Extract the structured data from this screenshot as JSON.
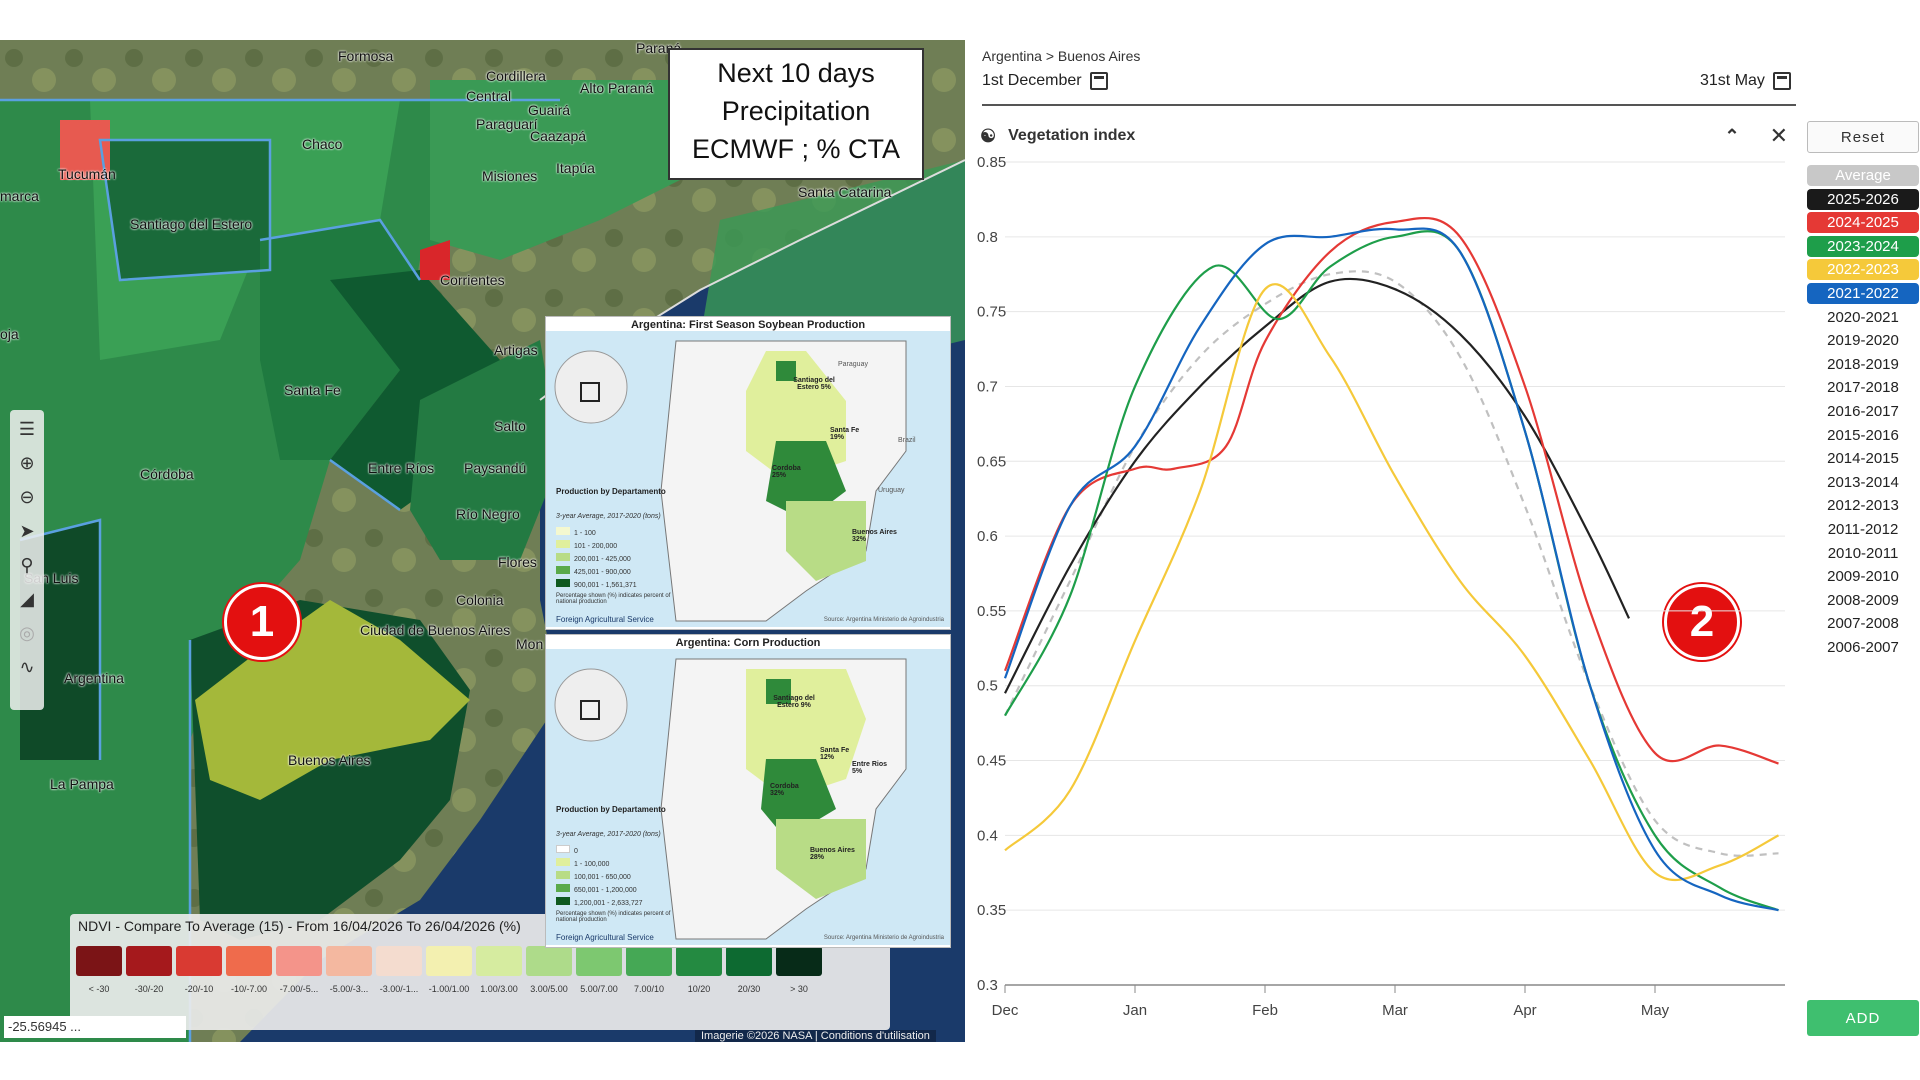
{
  "map": {
    "labels": [
      "Formosa",
      "Cordillera",
      "Paraguarí",
      "Guairá",
      "Alto Paraná",
      "Central",
      "Caazapá",
      "Itapúa",
      "Misiones",
      "Chaco",
      "Tucumán",
      "Santiago del Estero",
      "Corrientes",
      "Santa Catarina",
      "Santa Fe",
      "Artigas",
      "Córdoba",
      "Entre Ríos",
      "Paysandú",
      "Salto",
      "Río Negro",
      "Flores",
      "Colonia",
      "San Luis",
      "Ciudad de Buenos Aires",
      "Argentina",
      "La Pampa",
      "Buenos Aires",
      "Paraná",
      "marca",
      "oja",
      "Mon"
    ],
    "toolbar": [
      "layers-icon",
      "zoom-in-icon",
      "zoom-out-icon",
      "navigate-icon",
      "search-icon",
      "measure-icon",
      "locate-icon",
      "draw-icon"
    ],
    "legend": {
      "title": "NDVI - Compare To Average (15) - From 16/04/2026 To 26/04/2026 (%)",
      "items": [
        {
          "color": "#7b1416",
          "label": "< -30"
        },
        {
          "color": "#a5191c",
          "label": "-30/-20"
        },
        {
          "color": "#d93a32",
          "label": "-20/-10"
        },
        {
          "color": "#ef6b4c",
          "label": "-10/-7.00"
        },
        {
          "color": "#f4948a",
          "label": "-7.00/-5..."
        },
        {
          "color": "#f4b8a0",
          "label": "-5.00/-3..."
        },
        {
          "color": "#f4dccf",
          "label": "-3.00/-1..."
        },
        {
          "color": "#f3f0b0",
          "label": "-1.00/1.00"
        },
        {
          "color": "#d6eca0",
          "label": "1.00/3.00"
        },
        {
          "color": "#aedb8a",
          "label": "3.00/5.00"
        },
        {
          "color": "#7dc870",
          "label": "5.00/7.00"
        },
        {
          "color": "#45a855",
          "label": "7.00/10"
        },
        {
          "color": "#248a41",
          "label": "10/20"
        },
        {
          "color": "#0d6a31",
          "label": "20/30"
        },
        {
          "color": "#072b18",
          "label": "> 30"
        }
      ]
    },
    "coords": "-25.56945 ...",
    "credits": "Imagerie ©2026 NASA  |  Conditions d'utilisation"
  },
  "callout": {
    "line1": "Next 10 days",
    "line2": "Precipitation",
    "line3": "ECMWF ; % CTA"
  },
  "inset1": {
    "title": "Argentina: First Season Soybean Production",
    "legend_title": "Production by Departamento",
    "legend_sub": "3-year Average, 2017-2020 (tons)",
    "classes": [
      "1 - 100",
      "101 - 200,000",
      "200,001 - 425,000",
      "425,001 - 900,000",
      "900,001 - 1,561,371"
    ],
    "note": "Percentage shown (%) indicates percent of national production",
    "agency": "Foreign Agricultural Service",
    "source": "Source: Argentina Ministerio de Agroindustria",
    "labels": [
      "Santiago del Estero 5%",
      "Santa Fe 19%",
      "Cordoba 25%",
      "Buenos Aires 32%",
      "Paraguay",
      "Brazil",
      "Uruguay"
    ]
  },
  "inset2": {
    "title": "Argentina: Corn Production",
    "legend_title": "Production by Departamento",
    "legend_sub": "3-year Average, 2017-2020 (tons)",
    "classes": [
      "0",
      "1 - 100,000",
      "100,001 - 650,000",
      "650,001 - 1,200,000",
      "1,200,001 - 2,633,727"
    ],
    "note": "Percentage shown (%) indicates percent of national production",
    "agency": "Foreign Agricultural Service",
    "source": "Source: Argentina Ministerio de Agroindustria",
    "labels": [
      "Santiago del Estero 9%",
      "Santa Fe 12%",
      "Entre Rios 5%",
      "Cordoba 32%",
      "Buenos Aires 28%"
    ]
  },
  "badges": {
    "one": "1",
    "two": "2"
  },
  "panel": {
    "breadcrumb": "Argentina > Buenos Aires",
    "date_from": "1st December",
    "date_to": "31st May",
    "title": "Vegetation index",
    "reset": "Reset",
    "add": "ADD"
  },
  "years": [
    {
      "label": "Average",
      "bg": "#c8c8c8",
      "fg": "#ffffff"
    },
    {
      "label": "2025-2026",
      "bg": "#1a1a1a",
      "fg": "#ffffff"
    },
    {
      "label": "2024-2025",
      "bg": "#e53935",
      "fg": "#ffffff"
    },
    {
      "label": "2023-2024",
      "bg": "#1e9e4a",
      "fg": "#ffffff"
    },
    {
      "label": "2022-2023",
      "bg": "#f5c93a",
      "fg": "#ffffff"
    },
    {
      "label": "2021-2022",
      "bg": "#1565c0",
      "fg": "#ffffff"
    },
    {
      "label": "2020-2021",
      "bg": "",
      "fg": "#222"
    },
    {
      "label": "2019-2020",
      "bg": "",
      "fg": "#222"
    },
    {
      "label": "2018-2019",
      "bg": "",
      "fg": "#222"
    },
    {
      "label": "2017-2018",
      "bg": "",
      "fg": "#222"
    },
    {
      "label": "2016-2017",
      "bg": "",
      "fg": "#222"
    },
    {
      "label": "2015-2016",
      "bg": "",
      "fg": "#222"
    },
    {
      "label": "2014-2015",
      "bg": "",
      "fg": "#222"
    },
    {
      "label": "2013-2014",
      "bg": "",
      "fg": "#222"
    },
    {
      "label": "2012-2013",
      "bg": "",
      "fg": "#222"
    },
    {
      "label": "2011-2012",
      "bg": "",
      "fg": "#222"
    },
    {
      "label": "2010-2011",
      "bg": "",
      "fg": "#222"
    },
    {
      "label": "2009-2010",
      "bg": "",
      "fg": "#222"
    },
    {
      "label": "2008-2009",
      "bg": "",
      "fg": "#222"
    },
    {
      "label": "2007-2008",
      "bg": "",
      "fg": "#222"
    },
    {
      "label": "2006-2007",
      "bg": "",
      "fg": "#222"
    }
  ],
  "chart_data": {
    "type": "line",
    "title": "Vegetation index",
    "xlabel": "",
    "ylabel": "",
    "categories": [
      "Dec",
      "Jan",
      "Feb",
      "Mar",
      "Apr",
      "May"
    ],
    "x_range": [
      0,
      6
    ],
    "ylim": [
      0.3,
      0.85
    ],
    "yticks": [
      0.3,
      0.35,
      0.4,
      0.45,
      0.5,
      0.55,
      0.6,
      0.65,
      0.7,
      0.75,
      0.8,
      0.85
    ],
    "series": [
      {
        "name": "Average",
        "color": "#c0c0c0",
        "dashed": true,
        "x": [
          0,
          0.5,
          1,
          1.5,
          2,
          2.5,
          3,
          3.5,
          4,
          4.5,
          5,
          5.5,
          5.95
        ],
        "values": [
          0.48,
          0.57,
          0.66,
          0.72,
          0.755,
          0.775,
          0.77,
          0.72,
          0.62,
          0.5,
          0.41,
          0.388,
          0.388
        ]
      },
      {
        "name": "2025-2026",
        "color": "#222222",
        "x": [
          0,
          0.5,
          1,
          1.5,
          2,
          2.5,
          3,
          3.5,
          4,
          4.5,
          4.8
        ],
        "values": [
          0.495,
          0.58,
          0.65,
          0.7,
          0.74,
          0.77,
          0.765,
          0.735,
          0.68,
          0.6,
          0.545
        ]
      },
      {
        "name": "2024-2025",
        "color": "#e53935",
        "x": [
          0,
          0.5,
          1,
          1.3,
          1.7,
          2,
          2.5,
          3,
          3.5,
          4,
          4.5,
          5,
          5.5,
          5.95
        ],
        "values": [
          0.51,
          0.62,
          0.645,
          0.645,
          0.66,
          0.73,
          0.79,
          0.81,
          0.8,
          0.7,
          0.55,
          0.455,
          0.46,
          0.448
        ]
      },
      {
        "name": "2023-2024",
        "color": "#1e9e4a",
        "x": [
          0,
          0.5,
          1,
          1.6,
          2.1,
          2.5,
          3,
          3.5,
          4,
          4.5,
          5,
          5.5,
          5.95
        ],
        "values": [
          0.48,
          0.56,
          0.7,
          0.78,
          0.745,
          0.78,
          0.8,
          0.79,
          0.67,
          0.5,
          0.4,
          0.365,
          0.35
        ]
      },
      {
        "name": "2022-2023",
        "color": "#f5c93a",
        "x": [
          0,
          0.5,
          1,
          1.5,
          2,
          2.5,
          3,
          3.5,
          4,
          4.5,
          5,
          5.5,
          5.95
        ],
        "values": [
          0.39,
          0.43,
          0.53,
          0.63,
          0.765,
          0.72,
          0.64,
          0.57,
          0.52,
          0.45,
          0.375,
          0.38,
          0.4
        ]
      },
      {
        "name": "2021-2022",
        "color": "#1565c0",
        "x": [
          0,
          0.5,
          1,
          1.5,
          2,
          2.5,
          3,
          3.5,
          4,
          4.5,
          5,
          5.5,
          5.95
        ],
        "values": [
          0.505,
          0.62,
          0.66,
          0.74,
          0.795,
          0.8,
          0.805,
          0.79,
          0.67,
          0.5,
          0.39,
          0.36,
          0.35
        ]
      }
    ]
  }
}
